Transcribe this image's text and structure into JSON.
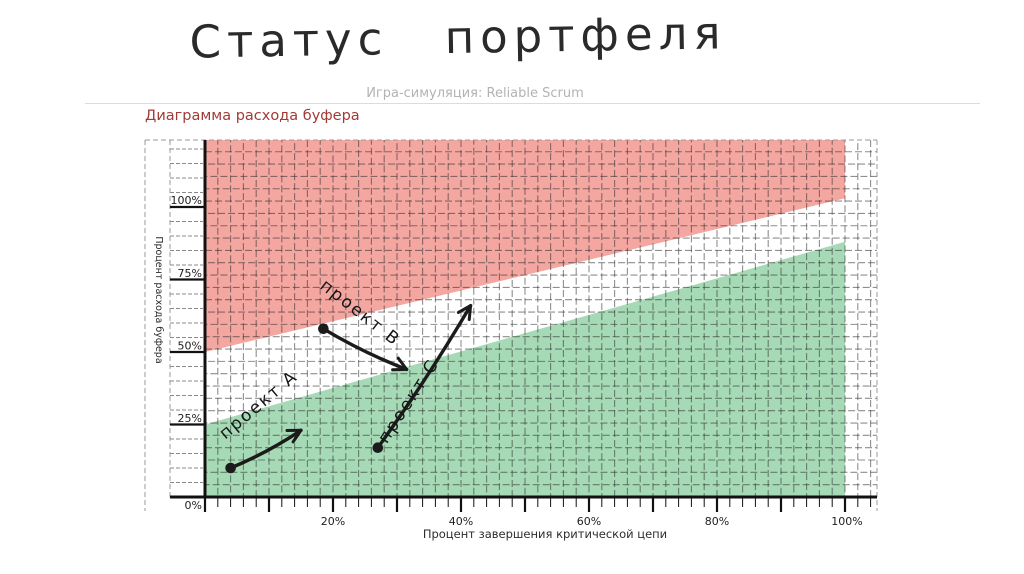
{
  "slide": {
    "title": "Статус портфеля",
    "subtitle": "Игра-симуляция: Reliable Scrum",
    "chart_title": "Диаграмма расхода буфера"
  },
  "colors": {
    "chart_title_text": "#a23b35",
    "subtitle_text": "#b3b3b3",
    "red_zone": "#f4a6a1",
    "green_zone": "#a6d9b5",
    "ink": "#1b1b1b",
    "grid_line": "rgba(40,40,40,0.52)",
    "frame_dash": "#9a9a9a"
  },
  "chart_data": {
    "type": "scatter",
    "title": "Диаграмма расхода буфера",
    "xlabel": "Процент завершения критической цепи",
    "ylabel": "Процент расхода буфера",
    "x_tick_labels": [
      "20%",
      "40%",
      "60%",
      "80%",
      "100%"
    ],
    "x_tick_values": [
      20,
      40,
      60,
      80,
      100
    ],
    "y_tick_labels": [
      "100%",
      "75%",
      "50%",
      "25%",
      "0%"
    ],
    "y_tick_values": [
      100,
      75,
      50,
      25,
      0
    ],
    "xlim": [
      0,
      105
    ],
    "ylim": [
      0,
      123
    ],
    "grid": true,
    "zones": {
      "red_boundary": [
        {
          "x": 0,
          "y": 50
        },
        {
          "x": 100,
          "y": 103
        }
      ],
      "green_boundary": [
        {
          "x": 0,
          "y": 25
        },
        {
          "x": 100,
          "y": 88
        }
      ]
    },
    "series": [
      {
        "name": "проект А",
        "start": {
          "x": 4,
          "y": 10
        },
        "end": {
          "x": 15,
          "y": 23
        }
      },
      {
        "name": "проект В",
        "start": {
          "x": 18.5,
          "y": 58
        },
        "end": {
          "x": 31.5,
          "y": 44
        }
      },
      {
        "name": "проект С",
        "start": {
          "x": 27,
          "y": 17
        },
        "end": {
          "x": 41.5,
          "y": 66
        }
      }
    ]
  }
}
